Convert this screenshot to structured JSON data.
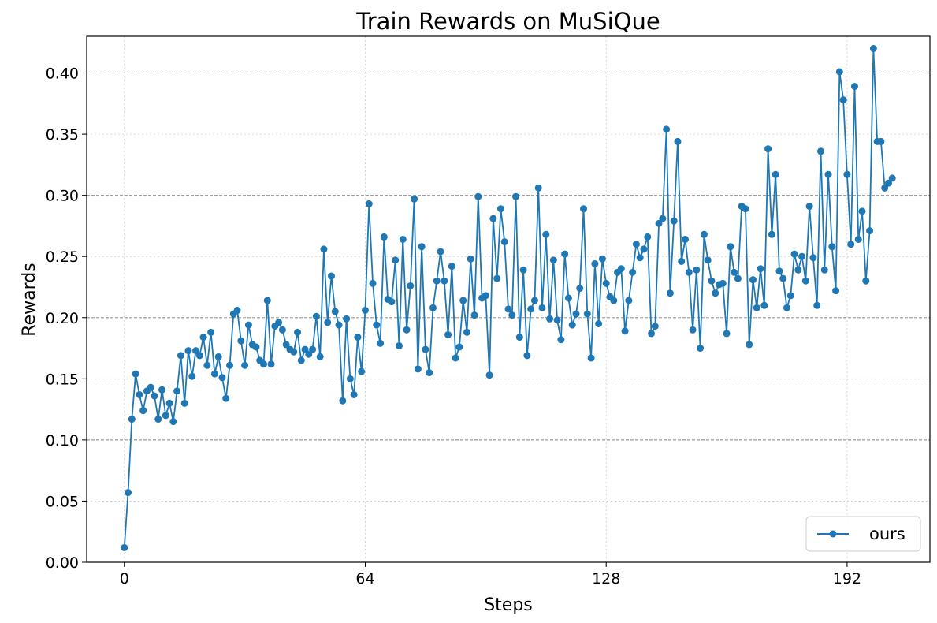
{
  "chart_data": {
    "type": "line",
    "title": "Train Rewards on MuSiQue",
    "xlabel": "Steps",
    "ylabel": "Rewards",
    "xlim": [
      -10,
      214
    ],
    "ylim": [
      0,
      0.43
    ],
    "xticks": [
      0,
      64,
      128,
      192
    ],
    "yticks": [
      0.0,
      0.05,
      0.1,
      0.15,
      0.2,
      0.25,
      0.3,
      0.35,
      0.4
    ],
    "ytick_labels": [
      "0.00",
      "0.05",
      "0.10",
      "0.15",
      "0.20",
      "0.25",
      "0.30",
      "0.35",
      "0.40"
    ],
    "grid": {
      "major_y": [
        0.1,
        0.2,
        0.3,
        0.4
      ],
      "minor_y": [
        0.05,
        0.15,
        0.25,
        0.35
      ],
      "x": [
        0,
        64,
        128,
        192
      ]
    },
    "legend_position": "bottom-right",
    "series": [
      {
        "name": "ours",
        "color": "#1f77b4",
        "marker": "circle",
        "x_start": 0,
        "x_step": 1,
        "values": [
          0.012,
          0.057,
          0.117,
          0.154,
          0.137,
          0.124,
          0.14,
          0.143,
          0.136,
          0.117,
          0.141,
          0.12,
          0.13,
          0.115,
          0.14,
          0.169,
          0.13,
          0.173,
          0.152,
          0.173,
          0.169,
          0.184,
          0.161,
          0.188,
          0.154,
          0.168,
          0.151,
          0.134,
          0.161,
          0.203,
          0.206,
          0.181,
          0.161,
          0.194,
          0.178,
          0.176,
          0.165,
          0.162,
          0.214,
          0.162,
          0.193,
          0.196,
          0.19,
          0.178,
          0.174,
          0.172,
          0.188,
          0.165,
          0.174,
          0.17,
          0.174,
          0.201,
          0.168,
          0.256,
          0.196,
          0.234,
          0.205,
          0.194,
          0.132,
          0.199,
          0.15,
          0.137,
          0.184,
          0.156,
          0.206,
          0.293,
          0.228,
          0.194,
          0.179,
          0.266,
          0.215,
          0.213,
          0.247,
          0.177,
          0.264,
          0.19,
          0.226,
          0.297,
          0.158,
          0.258,
          0.174,
          0.155,
          0.208,
          0.23,
          0.254,
          0.23,
          0.186,
          0.242,
          0.167,
          0.176,
          0.214,
          0.188,
          0.248,
          0.202,
          0.299,
          0.216,
          0.218,
          0.153,
          0.281,
          0.232,
          0.289,
          0.262,
          0.207,
          0.202,
          0.299,
          0.184,
          0.239,
          0.169,
          0.207,
          0.214,
          0.306,
          0.208,
          0.268,
          0.199,
          0.247,
          0.198,
          0.182,
          0.252,
          0.216,
          0.194,
          0.203,
          0.224,
          0.289,
          0.203,
          0.167,
          0.244,
          0.195,
          0.248,
          0.228,
          0.217,
          0.214,
          0.237,
          0.24,
          0.189,
          0.214,
          0.237,
          0.26,
          0.249,
          0.256,
          0.266,
          0.187,
          0.193,
          0.277,
          0.281,
          0.354,
          0.22,
          0.279,
          0.344,
          0.246,
          0.264,
          0.237,
          0.19,
          0.239,
          0.175,
          0.268,
          0.247,
          0.23,
          0.22,
          0.227,
          0.228,
          0.187,
          0.258,
          0.237,
          0.232,
          0.291,
          0.289,
          0.178,
          0.231,
          0.208,
          0.24,
          0.21,
          0.338,
          0.268,
          0.317,
          0.238,
          0.232,
          0.208,
          0.218,
          0.252,
          0.239,
          0.25,
          0.23,
          0.291,
          0.249,
          0.21,
          0.336,
          0.239,
          0.317,
          0.258,
          0.222,
          0.401,
          0.378,
          0.317,
          0.26,
          0.389,
          0.264,
          0.287,
          0.23,
          0.271,
          0.42,
          0.344,
          0.344,
          0.306,
          0.31,
          0.314
        ]
      }
    ]
  }
}
